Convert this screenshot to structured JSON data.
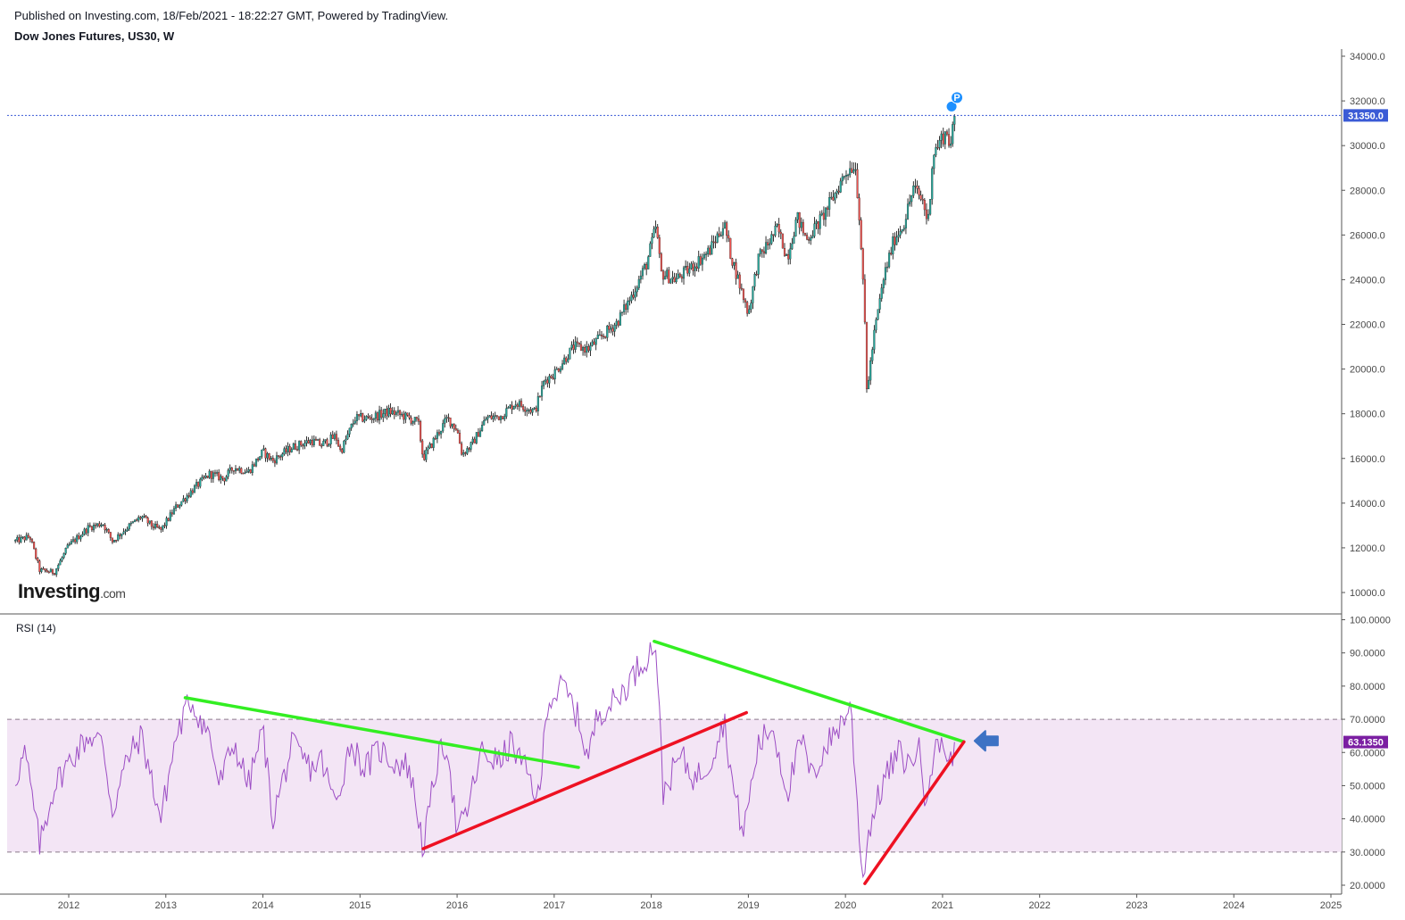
{
  "header": {
    "published": "Published on Investing.com, 18/Feb/2021 - 18:22:27 GMT, Powered by TradingView.",
    "title": "Dow Jones Futures, US30, W"
  },
  "logo": {
    "main": "Investing",
    "suffix": ".com"
  },
  "colors": {
    "up": "#26a69a",
    "down": "#ef5350",
    "wick": "#000000",
    "rsi_line": "#9c4dc4",
    "rsi_band": "#f3e5f5",
    "green_trend": "#33ee22",
    "red_trend": "#ee1122",
    "price_line": "#3b5bd6",
    "rsi_badge": "#7b1fa2",
    "arrow": "#3d72c4"
  },
  "chart_data": [
    {
      "type": "candlestick",
      "title": "Dow Jones Futures, US30, W",
      "ylim": [
        9000,
        34900
      ],
      "y_ticks": [
        "10000.0",
        "12000.0",
        "14000.0",
        "16000.0",
        "18000.0",
        "20000.0",
        "22000.0",
        "24000.0",
        "26000.0",
        "28000.0",
        "30000.0",
        "32000.0",
        "34000.0"
      ],
      "last_price": 31350.0,
      "last_price_label": "31350.0",
      "marker_label": "P",
      "path": [
        [
          2011.45,
          12300
        ],
        [
          2011.6,
          12500
        ],
        [
          2011.7,
          11000
        ],
        [
          2011.85,
          10900
        ],
        [
          2012.0,
          12100
        ],
        [
          2012.2,
          12900
        ],
        [
          2012.35,
          13100
        ],
        [
          2012.45,
          12300
        ],
        [
          2012.6,
          12900
        ],
        [
          2012.75,
          13400
        ],
        [
          2012.85,
          13000
        ],
        [
          2012.95,
          12800
        ],
        [
          2013.1,
          13800
        ],
        [
          2013.3,
          14700
        ],
        [
          2013.45,
          15300
        ],
        [
          2013.6,
          15100
        ],
        [
          2013.7,
          15600
        ],
        [
          2013.85,
          15400
        ],
        [
          2014.0,
          16300
        ],
        [
          2014.1,
          15900
        ],
        [
          2014.3,
          16500
        ],
        [
          2014.5,
          16800
        ],
        [
          2014.6,
          16600
        ],
        [
          2014.75,
          17000
        ],
        [
          2014.8,
          16300
        ],
        [
          2014.95,
          17800
        ],
        [
          2015.1,
          17800
        ],
        [
          2015.3,
          18100
        ],
        [
          2015.45,
          17900
        ],
        [
          2015.6,
          17600
        ],
        [
          2015.65,
          16000
        ],
        [
          2015.8,
          17100
        ],
        [
          2015.9,
          17800
        ],
        [
          2016.0,
          17300
        ],
        [
          2016.05,
          16200
        ],
        [
          2016.15,
          16600
        ],
        [
          2016.3,
          17800
        ],
        [
          2016.45,
          17900
        ],
        [
          2016.6,
          18500
        ],
        [
          2016.8,
          18100
        ],
        [
          2016.9,
          19500
        ],
        [
          2017.0,
          19800
        ],
        [
          2017.2,
          21000
        ],
        [
          2017.35,
          20900
        ],
        [
          2017.5,
          21500
        ],
        [
          2017.65,
          22100
        ],
        [
          2017.8,
          23300
        ],
        [
          2017.95,
          24700
        ],
        [
          2018.05,
          26400
        ],
        [
          2018.1,
          24300
        ],
        [
          2018.25,
          24000
        ],
        [
          2018.4,
          24500
        ],
        [
          2018.6,
          25300
        ],
        [
          2018.75,
          26500
        ],
        [
          2018.82,
          25100
        ],
        [
          2018.95,
          23200
        ],
        [
          2019.0,
          22500
        ],
        [
          2019.1,
          24900
        ],
        [
          2019.3,
          26300
        ],
        [
          2019.4,
          25000
        ],
        [
          2019.5,
          26800
        ],
        [
          2019.6,
          25800
        ],
        [
          2019.75,
          26700
        ],
        [
          2019.9,
          27900
        ],
        [
          2020.0,
          28800
        ],
        [
          2020.1,
          29200
        ],
        [
          2020.15,
          26500
        ],
        [
          2020.2,
          22000
        ],
        [
          2020.22,
          19000
        ],
        [
          2020.3,
          21700
        ],
        [
          2020.4,
          24200
        ],
        [
          2020.5,
          25800
        ],
        [
          2020.6,
          26500
        ],
        [
          2020.7,
          28100
        ],
        [
          2020.8,
          27500
        ],
        [
          2020.85,
          26500
        ],
        [
          2020.9,
          29600
        ],
        [
          2021.0,
          30400
        ],
        [
          2021.05,
          30600
        ],
        [
          2021.08,
          29900
        ],
        [
          2021.13,
          31400
        ]
      ]
    },
    {
      "type": "line",
      "title": "RSI (14)",
      "ylim": [
        18,
        102
      ],
      "y_ticks": [
        "20.0000",
        "30.0000",
        "40.0000",
        "50.0000",
        "60.0000",
        "70.0000",
        "80.0000",
        "90.0000",
        "100.0000"
      ],
      "band": [
        30,
        70
      ],
      "last_value": 63.135,
      "last_value_label": "63.1350",
      "path": [
        [
          2011.45,
          52
        ],
        [
          2011.55,
          60
        ],
        [
          2011.7,
          32
        ],
        [
          2011.85,
          50
        ],
        [
          2012.0,
          57
        ],
        [
          2012.2,
          65
        ],
        [
          2012.35,
          63
        ],
        [
          2012.45,
          42
        ],
        [
          2012.6,
          58
        ],
        [
          2012.75,
          65
        ],
        [
          2012.85,
          52
        ],
        [
          2012.95,
          40
        ],
        [
          2013.1,
          64
        ],
        [
          2013.25,
          76
        ],
        [
          2013.45,
          65
        ],
        [
          2013.55,
          50
        ],
        [
          2013.7,
          63
        ],
        [
          2013.85,
          50
        ],
        [
          2014.0,
          67
        ],
        [
          2014.1,
          40
        ],
        [
          2014.3,
          62
        ],
        [
          2014.5,
          55
        ],
        [
          2014.6,
          58
        ],
        [
          2014.75,
          44
        ],
        [
          2014.9,
          63
        ],
        [
          2015.05,
          55
        ],
        [
          2015.2,
          61
        ],
        [
          2015.35,
          57
        ],
        [
          2015.5,
          56
        ],
        [
          2015.6,
          41
        ],
        [
          2015.65,
          31
        ],
        [
          2015.8,
          58
        ],
        [
          2015.9,
          63
        ],
        [
          2016.0,
          35
        ],
        [
          2016.1,
          42
        ],
        [
          2016.25,
          60
        ],
        [
          2016.45,
          57
        ],
        [
          2016.55,
          63
        ],
        [
          2016.75,
          52
        ],
        [
          2016.85,
          45
        ],
        [
          2016.92,
          75
        ],
        [
          2017.1,
          80
        ],
        [
          2017.25,
          70
        ],
        [
          2017.35,
          58
        ],
        [
          2017.45,
          72
        ],
        [
          2017.65,
          76
        ],
        [
          2017.85,
          85
        ],
        [
          2018.05,
          93
        ],
        [
          2018.12,
          48
        ],
        [
          2018.3,
          59
        ],
        [
          2018.45,
          52
        ],
        [
          2018.6,
          57
        ],
        [
          2018.75,
          70
        ],
        [
          2018.85,
          48
        ],
        [
          2018.95,
          36
        ],
        [
          2019.1,
          62
        ],
        [
          2019.25,
          68
        ],
        [
          2019.4,
          48
        ],
        [
          2019.55,
          64
        ],
        [
          2019.65,
          52
        ],
        [
          2019.8,
          62
        ],
        [
          2020.0,
          71
        ],
        [
          2020.05,
          75
        ],
        [
          2020.12,
          45
        ],
        [
          2020.18,
          22
        ],
        [
          2020.25,
          38
        ],
        [
          2020.4,
          52
        ],
        [
          2020.55,
          60
        ],
        [
          2020.65,
          56
        ],
        [
          2020.75,
          62
        ],
        [
          2020.82,
          47
        ],
        [
          2020.9,
          58
        ],
        [
          2021.0,
          65
        ],
        [
          2021.06,
          55
        ],
        [
          2021.13,
          63.1
        ]
      ]
    },
    {
      "type": "axis",
      "x_ticks": [
        "2012",
        "2013",
        "2014",
        "2015",
        "2016",
        "2017",
        "2018",
        "2019",
        "2020",
        "2021",
        "2022",
        "2023",
        "2024",
        "2025"
      ],
      "xlim": [
        2011.35,
        2025.1
      ]
    }
  ],
  "trendlines": [
    {
      "name": "rsi-green-1",
      "color": "green_trend",
      "from": [
        2013.2,
        76.5
      ],
      "to": [
        2017.25,
        55.5
      ]
    },
    {
      "name": "rsi-red-1",
      "color": "red_trend",
      "from": [
        2015.65,
        31
      ],
      "to": [
        2018.98,
        72
      ]
    },
    {
      "name": "rsi-green-2",
      "color": "green_trend",
      "from": [
        2018.03,
        93.5
      ],
      "to": [
        2021.22,
        63.2
      ]
    },
    {
      "name": "rsi-red-2",
      "color": "red_trend",
      "from": [
        2020.2,
        20.5
      ],
      "to": [
        2021.22,
        63.2
      ]
    }
  ]
}
